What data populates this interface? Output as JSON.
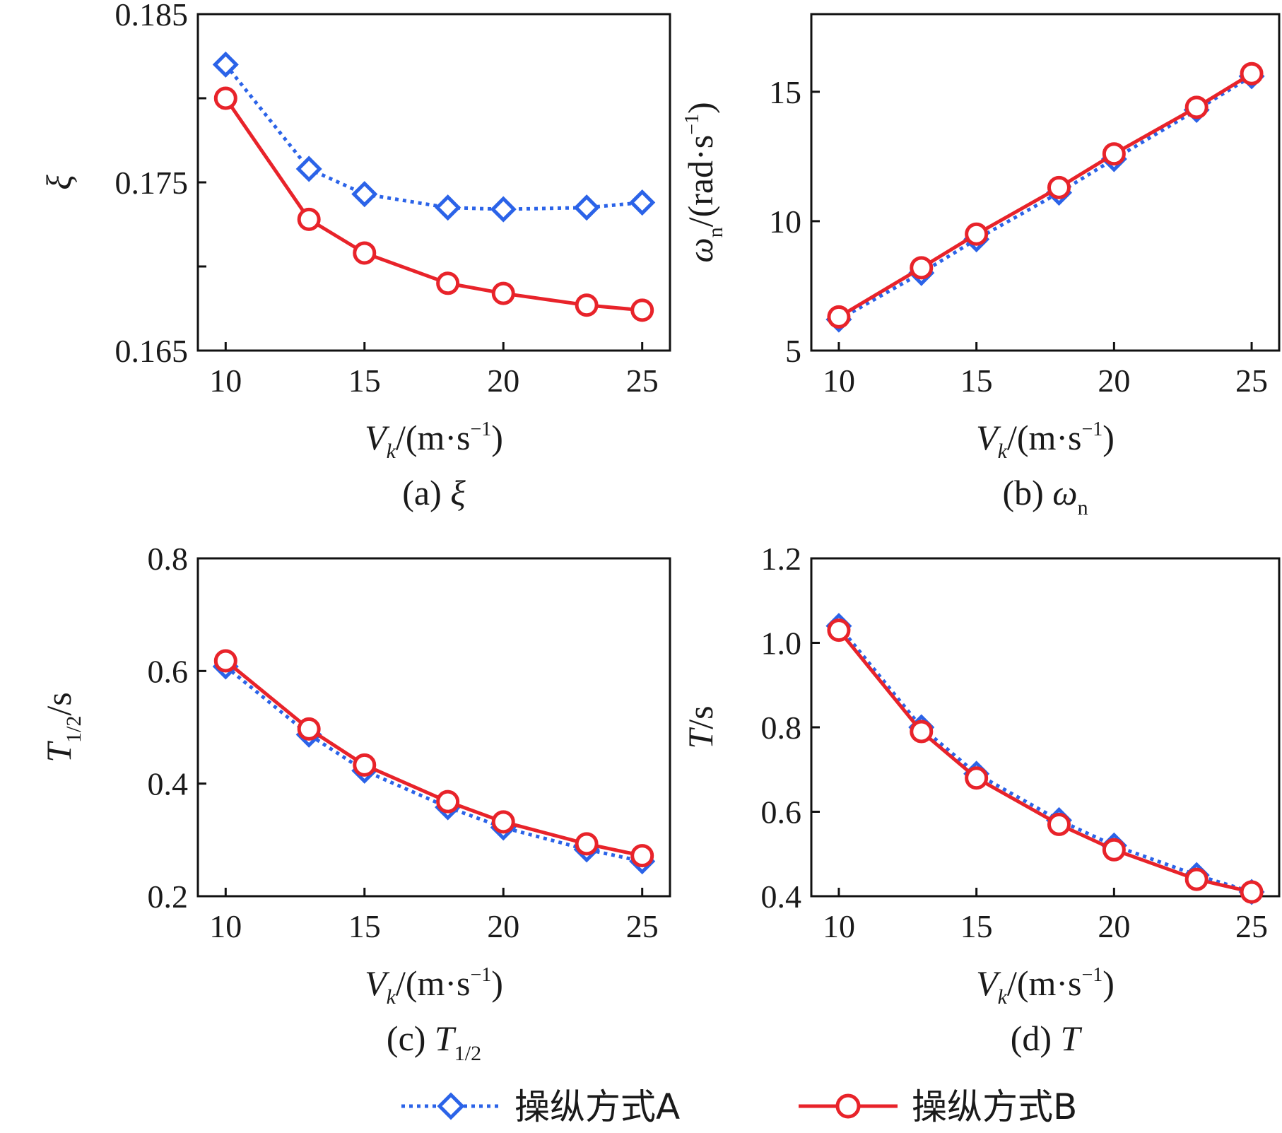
{
  "figure": {
    "legend": [
      {
        "name": "操纵方式A",
        "color": "#2B63E8",
        "marker": "diamond",
        "line": "dotted"
      },
      {
        "name": "操纵方式B",
        "color": "#E8232A",
        "marker": "circle",
        "line": "solid"
      }
    ]
  },
  "chart_data": [
    {
      "type": "line",
      "title": "(a) ξ",
      "caption_prefix": "(a)",
      "caption_symbol": "ξ",
      "xlabel": {
        "var": "V",
        "sub": "k",
        "unit": "/(m·s",
        "sup": "−1",
        "close": ")"
      },
      "ylabel": {
        "var": "ξ",
        "sub": "",
        "unit": ""
      },
      "x": [
        10,
        13,
        15,
        18,
        20,
        23,
        25
      ],
      "xlim": [
        9,
        26
      ],
      "xticks": [
        10,
        15,
        20,
        25
      ],
      "xtick_labels": [
        "10",
        "15",
        "20",
        "25"
      ],
      "ylim": [
        0.165,
        0.185
      ],
      "yticks": [
        0.165,
        0.17,
        0.175,
        0.18,
        0.185
      ],
      "ytick_labels": [
        "0.165",
        "",
        "0.175",
        "",
        "0.185"
      ],
      "series": [
        {
          "name": "操纵方式A",
          "values": [
            0.182,
            0.1758,
            0.1743,
            0.1735,
            0.1734,
            0.1735,
            0.1738
          ]
        },
        {
          "name": "操纵方式B",
          "values": [
            0.18,
            0.1728,
            0.1708,
            0.169,
            0.1684,
            0.1677,
            0.1674
          ]
        }
      ]
    },
    {
      "type": "line",
      "title": "(b) ωn",
      "caption_prefix": "(b)",
      "caption_symbol": "ω",
      "caption_sub": "n",
      "xlabel": {
        "var": "V",
        "sub": "k",
        "unit": "/(m·s",
        "sup": "−1",
        "close": ")"
      },
      "ylabel": {
        "var": "ω",
        "sub": "n",
        "unit": "/(rad·s",
        "sup": "−1",
        "close": ")"
      },
      "x": [
        10,
        13,
        15,
        18,
        20,
        23,
        25
      ],
      "xlim": [
        9,
        26
      ],
      "xticks": [
        10,
        15,
        20,
        25
      ],
      "xtick_labels": [
        "10",
        "15",
        "20",
        "25"
      ],
      "ylim": [
        5,
        18
      ],
      "yticks": [
        5,
        10,
        15
      ],
      "ytick_labels": [
        "5",
        "10",
        "15"
      ],
      "series": [
        {
          "name": "操纵方式A",
          "values": [
            6.2,
            8.0,
            9.3,
            11.1,
            12.4,
            14.3,
            15.6
          ]
        },
        {
          "name": "操纵方式B",
          "values": [
            6.3,
            8.2,
            9.5,
            11.3,
            12.6,
            14.4,
            15.7
          ]
        }
      ]
    },
    {
      "type": "line",
      "title": "(c) T1/2",
      "caption_prefix": "(c)",
      "caption_symbol": "T",
      "caption_sub": "1/2",
      "xlabel": {
        "var": "V",
        "sub": "k",
        "unit": "/(m·s",
        "sup": "−1",
        "close": ")"
      },
      "ylabel": {
        "var": "T",
        "sub": "1/2",
        "unit": "/s"
      },
      "x": [
        10,
        13,
        15,
        18,
        20,
        23,
        25
      ],
      "xlim": [
        9,
        26
      ],
      "xticks": [
        10,
        15,
        20,
        25
      ],
      "xtick_labels": [
        "10",
        "15",
        "20",
        "25"
      ],
      "ylim": [
        0.2,
        0.8
      ],
      "yticks": [
        0.2,
        0.4,
        0.6,
        0.8
      ],
      "ytick_labels": [
        "0.2",
        "0.4",
        "0.6",
        "0.8"
      ],
      "series": [
        {
          "name": "操纵方式A",
          "values": [
            0.608,
            0.487,
            0.423,
            0.358,
            0.322,
            0.283,
            0.262
          ]
        },
        {
          "name": "操纵方式B",
          "values": [
            0.618,
            0.497,
            0.433,
            0.368,
            0.332,
            0.293,
            0.272
          ]
        }
      ]
    },
    {
      "type": "line",
      "title": "(d) T",
      "caption_prefix": "(d)",
      "caption_symbol": "T",
      "xlabel": {
        "var": "V",
        "sub": "k",
        "unit": "/(m·s",
        "sup": "−1",
        "close": ")"
      },
      "ylabel": {
        "var": "T",
        "sub": "",
        "unit": "/s"
      },
      "x": [
        10,
        13,
        15,
        18,
        20,
        23,
        25
      ],
      "xlim": [
        9,
        26
      ],
      "xticks": [
        10,
        15,
        20,
        25
      ],
      "xtick_labels": [
        "10",
        "15",
        "20",
        "25"
      ],
      "ylim": [
        0.4,
        1.2
      ],
      "yticks": [
        0.4,
        0.6,
        0.8,
        1.0,
        1.2
      ],
      "ytick_labels": [
        "0.4",
        "0.6",
        "0.8",
        "1.0",
        "1.2"
      ],
      "series": [
        {
          "name": "操纵方式A",
          "values": [
            1.04,
            0.8,
            0.69,
            0.58,
            0.52,
            0.45,
            0.41
          ]
        },
        {
          "name": "操纵方式B",
          "values": [
            1.03,
            0.79,
            0.68,
            0.57,
            0.51,
            0.44,
            0.41
          ]
        }
      ]
    }
  ]
}
